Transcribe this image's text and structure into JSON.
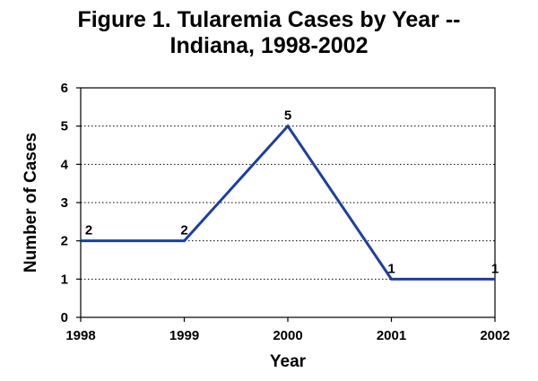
{
  "chart_data": {
    "type": "line",
    "title_line1": "Figure 1. Tularemia Cases by Year --",
    "title_line2": "Indiana, 1998-2002",
    "xlabel": "Year",
    "ylabel": "Number of Cases",
    "x": [
      "1998",
      "1999",
      "2000",
      "2001",
      "2002"
    ],
    "series": [
      {
        "values": [
          2,
          2,
          5,
          1,
          1
        ],
        "color": "#1c3fa0"
      }
    ],
    "data_labels": [
      "2",
      "2",
      "5",
      "1",
      "1"
    ],
    "ylim": [
      0,
      6
    ],
    "yticks": [
      0,
      1,
      2,
      3,
      4,
      5,
      6
    ],
    "grid": "horizontal dotted"
  }
}
